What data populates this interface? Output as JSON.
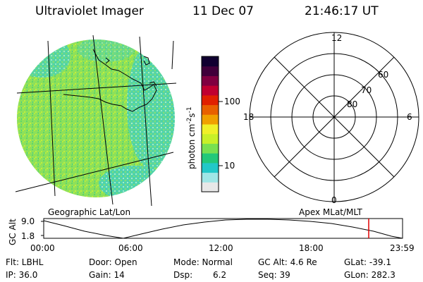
{
  "header": {
    "title": "Ultraviolet Imager",
    "date": "11 Dec 07",
    "time": "21:46:17 UT"
  },
  "colorbar": {
    "unit_label": "photon cm",
    "unit_sup1": "-2",
    "unit_s": "s",
    "unit_sup2": "-1",
    "ticks": [
      "100",
      "10"
    ],
    "colors": [
      "#e8e8e8",
      "#9fe6e6",
      "#22c8c8",
      "#22c87a",
      "#78e050",
      "#c8f028",
      "#f0f028",
      "#f0a000",
      "#e86000",
      "#e02000",
      "#c00030",
      "#800040",
      "#40003a",
      "#100030"
    ]
  },
  "polar_plot": {
    "mlt_labels": [
      "12",
      "18",
      "6",
      "0"
    ],
    "mlat_labels": [
      "60",
      "70",
      "80"
    ]
  },
  "image_color": "#8ee05a",
  "labels": {
    "left": "Geographic Lat/Lon",
    "right": "Apex MLat/MLT"
  },
  "orbit_plot": {
    "ylabel": "GC Alt",
    "yticks": [
      "9.0",
      "1.8"
    ],
    "xticks": [
      "00:00",
      "06:00",
      "12:00",
      "18:00",
      "23:59"
    ],
    "marker_color": "#e00000"
  },
  "footer": {
    "filter": "Flt: LBHL",
    "ip": "IP: 36.0",
    "door": "Door: Open",
    "gain": "Gain: 14",
    "mode": "Mode: Normal",
    "dsp_label": "Dsp:",
    "dsp_value": "6.2",
    "gc_alt": "GC Alt: 4.6 Re",
    "seq": "Seq: 39",
    "glat": "GLat: -39.1",
    "glon": "GLon: 282.3"
  }
}
